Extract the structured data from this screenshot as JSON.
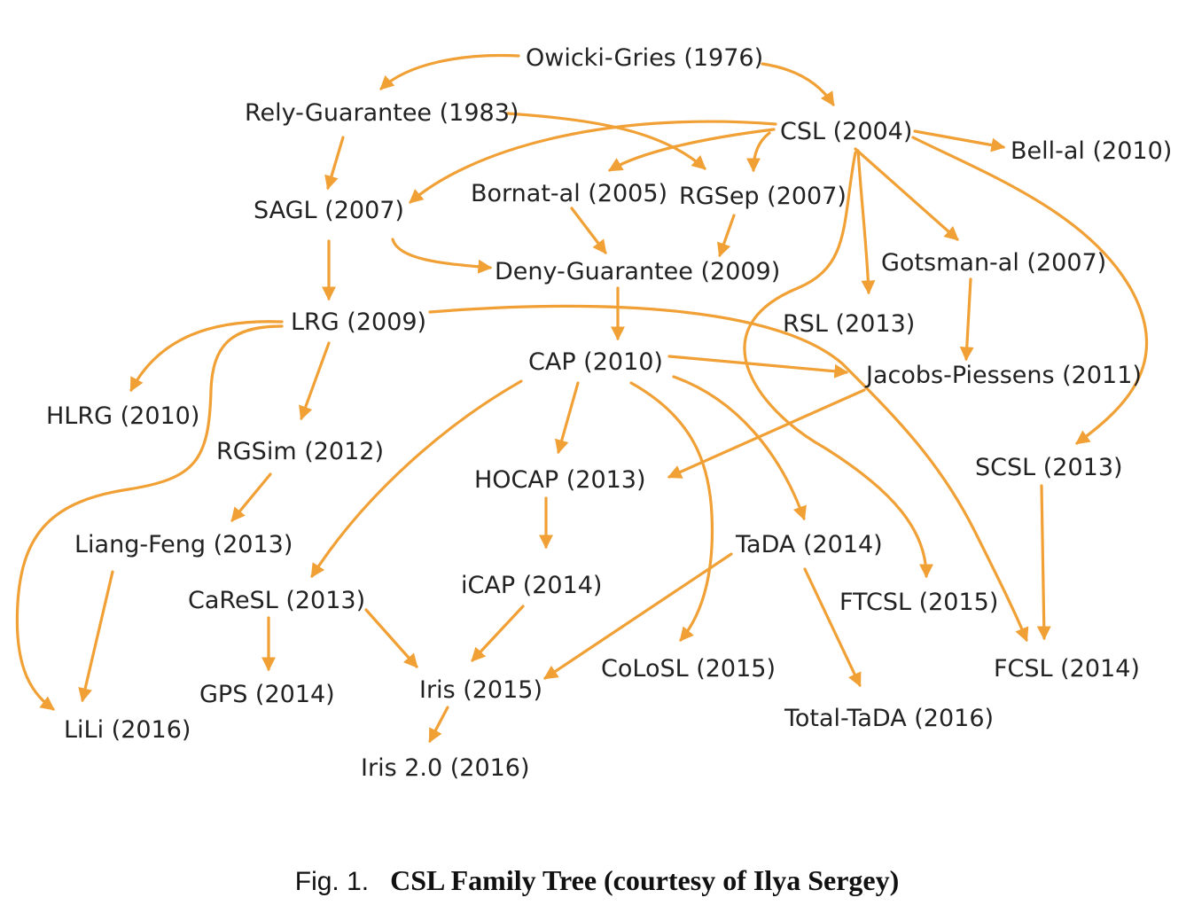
{
  "colors": {
    "edge": "#f0a035",
    "text": "#222222"
  },
  "nodes": {
    "owicki_gries": "Owicki-Gries (1976)",
    "rely_guarantee": "Rely-Guarantee (1983)",
    "csl": "CSL (2004)",
    "bell_al": "Bell-al (2010)",
    "sagl": "SAGL (2007)",
    "bornat_al": "Bornat-al (2005)",
    "rgsep": "RGSep (2007)",
    "deny_guarantee": "Deny-Guarantee (2009)",
    "gotsman_al": "Gotsman-al (2007)",
    "lrg": "LRG (2009)",
    "rsl": "RSL (2013)",
    "cap": "CAP (2010)",
    "jacobs_piessens": "Jacobs-Piessens (2011)",
    "hlrg": "HLRG (2010)",
    "rgsim": "RGSim (2012)",
    "hocap": "HOCAP (2013)",
    "scsl": "SCSL (2013)",
    "liang_feng": "Liang-Feng (2013)",
    "tada": "TaDA (2014)",
    "icap": "iCAP (2014)",
    "caresl": "CaReSL (2013)",
    "ftcsl": "FTCSL (2015)",
    "colosl": "CoLoSL (2015)",
    "fcsl": "FCSL (2014)",
    "gps": "GPS (2014)",
    "iris": "Iris (2015)",
    "total_tada": "Total-TaDA (2016)",
    "lili": "LiLi (2016)",
    "iris2": "Iris 2.0 (2016)"
  },
  "caption": {
    "number": "Fig. 1.",
    "title": "CSL Family Tree (courtesy of Ilya Sergey)"
  }
}
